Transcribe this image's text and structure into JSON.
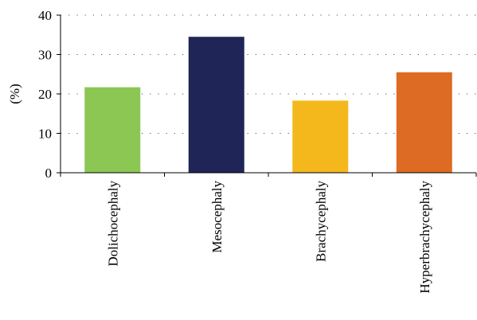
{
  "chart_data": {
    "type": "bar",
    "title": "",
    "xlabel": "",
    "ylabel": "(%)",
    "ylim": [
      0,
      40
    ],
    "yticks": [
      0,
      10,
      20,
      30,
      40
    ],
    "grid": "horizontal-dotted",
    "categories": [
      "Dolichocephaly",
      "Mesocephaly",
      "Brachycephaly",
      "Hyperbrachycephaly"
    ],
    "values": [
      21.7,
      34.5,
      18.3,
      25.5
    ],
    "colors": [
      "#8cc753",
      "#1f2657",
      "#f4b81d",
      "#dd6b23"
    ]
  }
}
